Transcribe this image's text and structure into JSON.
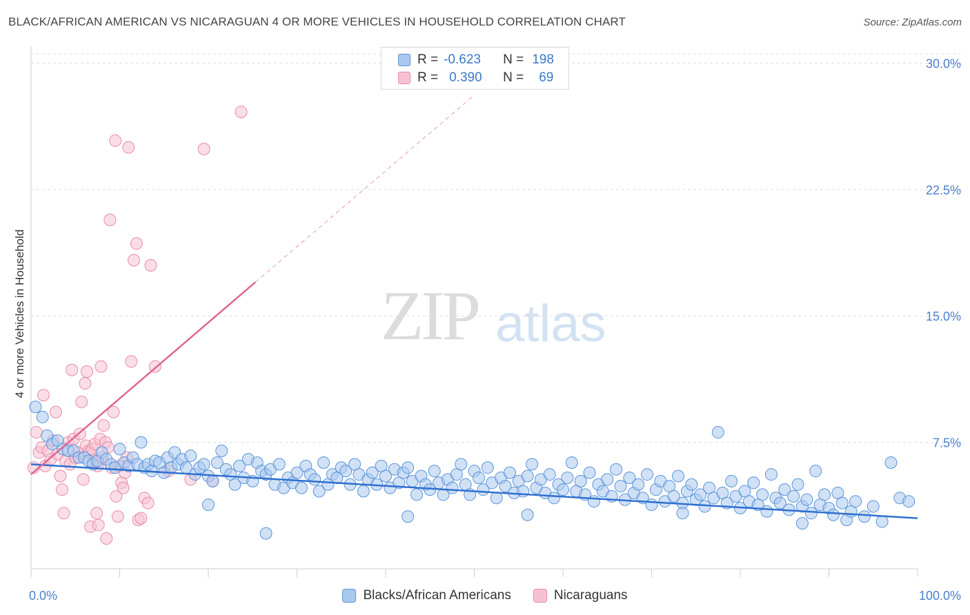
{
  "header": {
    "title": "BLACK/AFRICAN AMERICAN VS NICARAGUAN 4 OR MORE VEHICLES IN HOUSEHOLD CORRELATION CHART",
    "source": "Source: ZipAtlas.com"
  },
  "watermark": {
    "zip": "ZIP",
    "atlas": "atlas"
  },
  "legend_top": {
    "rows": [
      {
        "r_label": "R =",
        "r_value": "-0.623",
        "n_label": "N =",
        "n_value": "198"
      },
      {
        "r_label": "R =",
        "r_value": "0.390",
        "n_label": "N =",
        "n_value": "69"
      }
    ]
  },
  "legend_bottom": {
    "items": [
      {
        "label": "Blacks/African Americans"
      },
      {
        "label": "Nicaraguans"
      }
    ]
  },
  "colors": {
    "blue_fill": "#aac8ee",
    "blue_stroke": "#5b93d8",
    "blue_line": "#2e6fd0",
    "pink_fill": "#f6c2d2",
    "pink_stroke": "#e88aa8",
    "pink_line": "#e0648f",
    "tick_text": "#4a7fcf",
    "grid": "#dddddd"
  },
  "chart_data": {
    "type": "scatter",
    "title": "BLACK/AFRICAN AMERICAN VS NICARAGUAN 4 OR MORE VEHICLES IN HOUSEHOLD CORRELATION CHART",
    "xlabel": "",
    "ylabel": "4 or more Vehicles in Household",
    "xlim": [
      0,
      100
    ],
    "ylim": [
      0,
      31
    ],
    "x_tick_labels": [
      "0.0%",
      "100.0%"
    ],
    "y_ticks": [
      7.5,
      15.0,
      22.5,
      30.0
    ],
    "y_tick_labels": [
      "7.5%",
      "15.0%",
      "22.5%",
      "30.0%"
    ],
    "grid": true,
    "legend_position": "top-center",
    "series": [
      {
        "name": "Blacks/African Americans",
        "r": -0.623,
        "n": 198,
        "trend": {
          "x": [
            0,
            100
          ],
          "y": [
            6.2,
            3.0
          ]
        },
        "points": [
          [
            0.5,
            9.6
          ],
          [
            1.3,
            9.0
          ],
          [
            1.8,
            7.9
          ],
          [
            2.4,
            7.4
          ],
          [
            3.0,
            7.6
          ],
          [
            3.6,
            7.1
          ],
          [
            4.2,
            7.0
          ],
          [
            4.8,
            7.0
          ],
          [
            5.4,
            6.6
          ],
          [
            6.0,
            6.6
          ],
          [
            6.5,
            6.4
          ],
          [
            7.0,
            6.2
          ],
          [
            7.5,
            6.4
          ],
          [
            8.0,
            6.9
          ],
          [
            8.5,
            6.5
          ],
          [
            9.0,
            6.2
          ],
          [
            9.5,
            6.0
          ],
          [
            10.0,
            7.1
          ],
          [
            10.5,
            6.3
          ],
          [
            11.0,
            6.1
          ],
          [
            11.5,
            6.6
          ],
          [
            12.0,
            6.2
          ],
          [
            12.4,
            7.5
          ],
          [
            12.8,
            6.0
          ],
          [
            13.2,
            6.2
          ],
          [
            13.6,
            5.8
          ],
          [
            14.0,
            6.4
          ],
          [
            14.5,
            6.3
          ],
          [
            15.0,
            5.7
          ],
          [
            15.4,
            6.6
          ],
          [
            15.8,
            6.0
          ],
          [
            16.2,
            6.9
          ],
          [
            16.6,
            6.2
          ],
          [
            17.0,
            6.5
          ],
          [
            17.5,
            6.0
          ],
          [
            18.0,
            6.7
          ],
          [
            18.5,
            5.6
          ],
          [
            19.0,
            6.0
          ],
          [
            19.5,
            6.2
          ],
          [
            20.0,
            5.5
          ],
          [
            20.5,
            5.2
          ],
          [
            21.0,
            6.3
          ],
          [
            21.5,
            7.0
          ],
          [
            22.0,
            5.9
          ],
          [
            22.5,
            5.6
          ],
          [
            23.0,
            5.0
          ],
          [
            23.5,
            6.1
          ],
          [
            24.0,
            5.4
          ],
          [
            24.5,
            6.5
          ],
          [
            25.0,
            5.2
          ],
          [
            25.5,
            6.3
          ],
          [
            26.0,
            5.8
          ],
          [
            26.5,
            5.6
          ],
          [
            27.0,
            5.9
          ],
          [
            27.5,
            5.0
          ],
          [
            28.0,
            6.2
          ],
          [
            28.5,
            4.8
          ],
          [
            29.0,
            5.4
          ],
          [
            29.5,
            5.1
          ],
          [
            30.0,
            5.7
          ],
          [
            30.5,
            4.8
          ],
          [
            31.0,
            6.1
          ],
          [
            31.5,
            5.6
          ],
          [
            32.0,
            5.3
          ],
          [
            32.5,
            4.6
          ],
          [
            33.0,
            6.3
          ],
          [
            33.5,
            5.0
          ],
          [
            34.0,
            5.6
          ],
          [
            34.5,
            5.4
          ],
          [
            35.0,
            6.0
          ],
          [
            35.5,
            5.8
          ],
          [
            36.0,
            5.0
          ],
          [
            36.5,
            6.2
          ],
          [
            37.0,
            5.6
          ],
          [
            37.5,
            4.6
          ],
          [
            38.0,
            5.3
          ],
          [
            38.5,
            5.7
          ],
          [
            39.0,
            5.0
          ],
          [
            39.5,
            6.1
          ],
          [
            40.0,
            5.5
          ],
          [
            40.5,
            4.8
          ],
          [
            41.0,
            5.9
          ],
          [
            41.5,
            5.1
          ],
          [
            42.0,
            5.7
          ],
          [
            42.5,
            6.0
          ],
          [
            43.0,
            5.2
          ],
          [
            43.5,
            4.4
          ],
          [
            44.0,
            5.5
          ],
          [
            44.5,
            5.0
          ],
          [
            45.0,
            4.7
          ],
          [
            45.5,
            5.8
          ],
          [
            46.0,
            5.1
          ],
          [
            46.5,
            4.4
          ],
          [
            47.0,
            5.3
          ],
          [
            47.5,
            4.8
          ],
          [
            48.0,
            5.6
          ],
          [
            48.5,
            6.2
          ],
          [
            49.0,
            5.0
          ],
          [
            49.5,
            4.4
          ],
          [
            50.0,
            5.8
          ],
          [
            50.5,
            5.4
          ],
          [
            51.0,
            4.7
          ],
          [
            51.5,
            6.0
          ],
          [
            52.0,
            5.1
          ],
          [
            52.5,
            4.2
          ],
          [
            53.0,
            5.4
          ],
          [
            53.5,
            4.9
          ],
          [
            54.0,
            5.7
          ],
          [
            54.5,
            4.5
          ],
          [
            55.0,
            5.2
          ],
          [
            55.5,
            4.6
          ],
          [
            56.0,
            5.5
          ],
          [
            56.5,
            6.2
          ],
          [
            57.0,
            4.8
          ],
          [
            57.5,
            5.3
          ],
          [
            58.0,
            4.5
          ],
          [
            58.5,
            5.6
          ],
          [
            59.0,
            4.2
          ],
          [
            59.5,
            5.0
          ],
          [
            60.0,
            4.7
          ],
          [
            60.5,
            5.4
          ],
          [
            61.0,
            6.3
          ],
          [
            61.5,
            4.6
          ],
          [
            62.0,
            5.2
          ],
          [
            62.5,
            4.4
          ],
          [
            63.0,
            5.7
          ],
          [
            63.5,
            4.0
          ],
          [
            64.0,
            5.0
          ],
          [
            64.5,
            4.6
          ],
          [
            65.0,
            5.3
          ],
          [
            65.5,
            4.3
          ],
          [
            66.0,
            5.9
          ],
          [
            66.5,
            4.9
          ],
          [
            67.0,
            4.1
          ],
          [
            67.5,
            5.4
          ],
          [
            68.0,
            4.5
          ],
          [
            68.5,
            5.0
          ],
          [
            69.0,
            4.2
          ],
          [
            69.5,
            5.6
          ],
          [
            70.0,
            3.8
          ],
          [
            70.5,
            4.7
          ],
          [
            71.0,
            5.2
          ],
          [
            71.5,
            4.0
          ],
          [
            72.0,
            4.9
          ],
          [
            72.5,
            4.3
          ],
          [
            73.0,
            5.5
          ],
          [
            73.5,
            3.9
          ],
          [
            74.0,
            4.6
          ],
          [
            74.5,
            5.0
          ],
          [
            75.0,
            4.1
          ],
          [
            75.5,
            4.4
          ],
          [
            76.0,
            3.7
          ],
          [
            76.5,
            4.8
          ],
          [
            77.0,
            4.2
          ],
          [
            77.5,
            8.1
          ],
          [
            78.0,
            4.5
          ],
          [
            78.5,
            3.9
          ],
          [
            79.0,
            5.2
          ],
          [
            79.5,
            4.3
          ],
          [
            80.0,
            3.6
          ],
          [
            80.5,
            4.6
          ],
          [
            81.0,
            4.0
          ],
          [
            81.5,
            5.1
          ],
          [
            82.0,
            3.8
          ],
          [
            82.5,
            4.4
          ],
          [
            83.0,
            3.4
          ],
          [
            83.5,
            5.6
          ],
          [
            84.0,
            4.2
          ],
          [
            84.5,
            3.9
          ],
          [
            85.0,
            4.7
          ],
          [
            85.5,
            3.5
          ],
          [
            86.0,
            4.3
          ],
          [
            86.5,
            5.0
          ],
          [
            87.0,
            3.7
          ],
          [
            87.5,
            4.1
          ],
          [
            88.0,
            3.3
          ],
          [
            88.5,
            5.8
          ],
          [
            89.0,
            3.8
          ],
          [
            89.5,
            4.4
          ],
          [
            90.0,
            3.6
          ],
          [
            90.5,
            3.2
          ],
          [
            91.0,
            4.5
          ],
          [
            91.5,
            3.9
          ],
          [
            92.0,
            2.9
          ],
          [
            92.5,
            3.4
          ],
          [
            93.0,
            4.0
          ],
          [
            94.0,
            3.1
          ],
          [
            95.0,
            3.7
          ],
          [
            96.0,
            2.8
          ],
          [
            97.0,
            6.3
          ],
          [
            98.0,
            4.2
          ],
          [
            99.0,
            4.0
          ],
          [
            26.5,
            2.1
          ],
          [
            20.0,
            3.8
          ],
          [
            56.0,
            3.2
          ],
          [
            42.5,
            3.1
          ],
          [
            73.5,
            3.3
          ],
          [
            87.0,
            2.7
          ]
        ]
      },
      {
        "name": "Nicaraguans",
        "r": 0.39,
        "n": 69,
        "trend": {
          "x": [
            0,
            25.3
          ],
          "y": [
            5.6,
            17.0
          ],
          "dashed_extension_to": [
            50,
            28.1
          ]
        },
        "points": [
          [
            0.3,
            6.0
          ],
          [
            0.6,
            8.1
          ],
          [
            0.9,
            6.9
          ],
          [
            1.2,
            7.2
          ],
          [
            1.4,
            10.3
          ],
          [
            1.6,
            6.1
          ],
          [
            1.9,
            7.0
          ],
          [
            2.2,
            6.5
          ],
          [
            2.5,
            7.6
          ],
          [
            2.8,
            9.3
          ],
          [
            3.0,
            6.8
          ],
          [
            3.3,
            5.5
          ],
          [
            3.5,
            4.7
          ],
          [
            3.7,
            3.3
          ],
          [
            3.9,
            6.4
          ],
          [
            4.2,
            7.5
          ],
          [
            4.4,
            6.2
          ],
          [
            4.6,
            11.8
          ],
          [
            4.8,
            7.7
          ],
          [
            5.0,
            6.6
          ],
          [
            5.3,
            6.9
          ],
          [
            5.5,
            8.0
          ],
          [
            5.7,
            9.9
          ],
          [
            5.9,
            5.3
          ],
          [
            6.1,
            11.0
          ],
          [
            6.2,
            7.3
          ],
          [
            6.3,
            11.7
          ],
          [
            6.5,
            7.0
          ],
          [
            6.6,
            6.9
          ],
          [
            6.7,
            2.5
          ],
          [
            6.9,
            7.1
          ],
          [
            7.0,
            6.3
          ],
          [
            7.2,
            7.4
          ],
          [
            7.4,
            3.3
          ],
          [
            7.5,
            6.1
          ],
          [
            7.6,
            2.6
          ],
          [
            7.8,
            7.7
          ],
          [
            7.9,
            12.0
          ],
          [
            8.0,
            6.6
          ],
          [
            8.2,
            8.5
          ],
          [
            8.4,
            7.5
          ],
          [
            8.5,
            1.8
          ],
          [
            8.7,
            7.2
          ],
          [
            8.9,
            20.7
          ],
          [
            9.1,
            6.0
          ],
          [
            9.3,
            9.3
          ],
          [
            9.5,
            25.4
          ],
          [
            9.6,
            4.3
          ],
          [
            9.8,
            3.1
          ],
          [
            10.0,
            6.1
          ],
          [
            10.2,
            5.1
          ],
          [
            10.4,
            4.8
          ],
          [
            10.6,
            5.7
          ],
          [
            10.8,
            6.6
          ],
          [
            11.0,
            25.0
          ],
          [
            11.3,
            12.3
          ],
          [
            11.6,
            18.3
          ],
          [
            11.9,
            19.3
          ],
          [
            12.1,
            2.9
          ],
          [
            12.4,
            3.0
          ],
          [
            12.8,
            4.2
          ],
          [
            13.2,
            3.9
          ],
          [
            13.5,
            18.0
          ],
          [
            14.0,
            12.0
          ],
          [
            15.5,
            5.8
          ],
          [
            18.0,
            5.3
          ],
          [
            20.5,
            5.2
          ],
          [
            19.5,
            24.9
          ],
          [
            23.7,
            27.1
          ]
        ]
      }
    ]
  }
}
